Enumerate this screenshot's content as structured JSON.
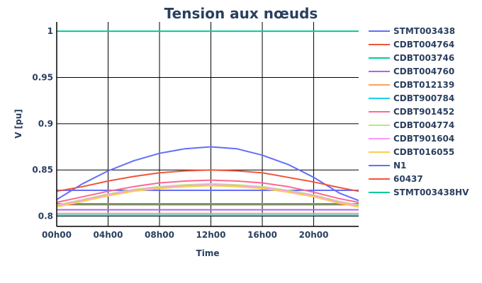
{
  "chart_data": {
    "type": "line",
    "title": "Tension aux nœuds",
    "xlabel": "Time",
    "ylabel": "V [pu]",
    "x_ticks": [
      "00h00",
      "04h00",
      "08h00",
      "12h00",
      "16h00",
      "20h00"
    ],
    "x_tick_hours": [
      0,
      4,
      8,
      12,
      16,
      20
    ],
    "xlim": [
      0,
      23.5
    ],
    "ylim": [
      0.789,
      1.01
    ],
    "y_ticks": [
      0.8,
      0.85,
      0.9,
      0.95,
      1
    ],
    "y_tick_labels": [
      "0.8",
      "0.85",
      "0.9",
      "0.95",
      "1"
    ],
    "grid": true,
    "legend_position": "right",
    "x": [
      0,
      2,
      4,
      6,
      8,
      10,
      12,
      14,
      16,
      18,
      20,
      22,
      23.5
    ],
    "series": [
      {
        "name": "STMT003438",
        "color": "#636efa",
        "values": [
          0.828,
          0.828,
          0.828,
          0.828,
          0.828,
          0.828,
          0.828,
          0.828,
          0.828,
          0.828,
          0.828,
          0.828,
          0.828
        ]
      },
      {
        "name": "CDBT004764",
        "color": "#EF553B",
        "values": [
          0.8125,
          0.8125,
          0.8125,
          0.8125,
          0.8125,
          0.8125,
          0.8125,
          0.8125,
          0.8125,
          0.8125,
          0.8125,
          0.8125,
          0.8125
        ]
      },
      {
        "name": "CDBT003746",
        "color": "#00cc96",
        "values": [
          0.8135,
          0.8135,
          0.8135,
          0.8135,
          0.8135,
          0.8135,
          0.8135,
          0.8135,
          0.8135,
          0.8135,
          0.8135,
          0.8135,
          0.8135
        ]
      },
      {
        "name": "CDBT004760",
        "color": "#ab63fa",
        "values": [
          0.807,
          0.807,
          0.807,
          0.807,
          0.807,
          0.807,
          0.807,
          0.807,
          0.807,
          0.807,
          0.807,
          0.807,
          0.807
        ]
      },
      {
        "name": "CDBT012139",
        "color": "#FFA15A",
        "values": [
          0.803,
          0.803,
          0.803,
          0.803,
          0.803,
          0.803,
          0.803,
          0.803,
          0.803,
          0.803,
          0.803,
          0.803,
          0.803
        ]
      },
      {
        "name": "CDBT900784",
        "color": "#19d3f3",
        "values": [
          0.801,
          0.801,
          0.801,
          0.801,
          0.801,
          0.801,
          0.801,
          0.801,
          0.801,
          0.801,
          0.801,
          0.801,
          0.801
        ]
      },
      {
        "name": "CDBT901452",
        "color": "#FF6692",
        "values": [
          0.815,
          0.821,
          0.827,
          0.832,
          0.836,
          0.838,
          0.839,
          0.838,
          0.836,
          0.832,
          0.826,
          0.819,
          0.815
        ]
      },
      {
        "name": "CDBT004774",
        "color": "#B6E880",
        "values": [
          0.812,
          0.818,
          0.824,
          0.829,
          0.832,
          0.834,
          0.835,
          0.834,
          0.832,
          0.828,
          0.823,
          0.816,
          0.812
        ]
      },
      {
        "name": "CDBT901604",
        "color": "#FF97FF",
        "values": [
          0.811,
          0.817,
          0.823,
          0.828,
          0.831,
          0.833,
          0.834,
          0.833,
          0.831,
          0.827,
          0.822,
          0.815,
          0.811
        ]
      },
      {
        "name": "CDBT016055",
        "color": "#FECB52",
        "values": [
          0.81,
          0.816,
          0.822,
          0.827,
          0.83,
          0.832,
          0.833,
          0.832,
          0.83,
          0.826,
          0.821,
          0.814,
          0.81
        ]
      },
      {
        "name": "N1",
        "color": "#636efa",
        "values": [
          0.818,
          0.835,
          0.849,
          0.86,
          0.868,
          0.873,
          0.875,
          0.873,
          0.866,
          0.856,
          0.842,
          0.825,
          0.817
        ]
      },
      {
        "name": "60437",
        "color": "#EF553B",
        "values": [
          0.827,
          0.832,
          0.838,
          0.843,
          0.847,
          0.849,
          0.85,
          0.849,
          0.847,
          0.842,
          0.837,
          0.831,
          0.827
        ]
      },
      {
        "name": "STMT003438HV",
        "color": "#00cc96",
        "values": [
          1,
          1,
          1,
          1,
          1,
          1,
          1,
          1,
          1,
          1,
          1,
          1,
          1
        ]
      }
    ]
  }
}
